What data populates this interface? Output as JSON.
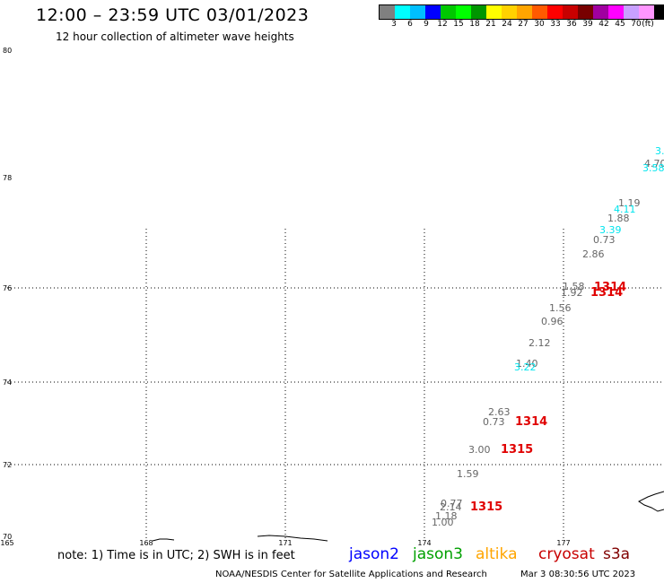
{
  "header": {
    "title": "12:00 – 23:59 UTC 03/01/2023",
    "subtitle": "12 hour collection of altimeter wave heights"
  },
  "colorbar": {
    "swatches": [
      "#808080",
      "#00ffff",
      "#00bfff",
      "#0000ff",
      "#00c800",
      "#00ff00",
      "#009600",
      "#ffff00",
      "#ffd200",
      "#ffa500",
      "#ff5a00",
      "#ff0000",
      "#c80000",
      "#780000",
      "#a000a0",
      "#ff00ff",
      "#c8a0ff",
      "#ff96ff",
      "#000000"
    ],
    "labels": [
      "3",
      "6",
      "9",
      "12",
      "15",
      "18",
      "21",
      "24",
      "27",
      "30",
      "33",
      "36",
      "39",
      "42",
      "45",
      "70",
      "(ft)"
    ]
  },
  "map": {
    "lat_labels": [
      "80",
      "78",
      "76",
      "74",
      "72",
      "70"
    ],
    "lon_labels": [
      "165",
      "168",
      "171",
      "174",
      "177"
    ],
    "observations": [
      {
        "v": "3.",
        "c": "#00e5ee"
      },
      {
        "v": "4.70",
        "c": "#666666"
      },
      {
        "v": "3.58",
        "c": "#00e5ee"
      },
      {
        "v": "1.19",
        "c": "#666666"
      },
      {
        "v": "4.11",
        "c": "#00e5ee"
      },
      {
        "v": "1.88",
        "c": "#666666"
      },
      {
        "v": "3.39",
        "c": "#00e5ee"
      },
      {
        "v": "0.73",
        "c": "#666666"
      },
      {
        "v": "2.86",
        "c": "#666666"
      },
      {
        "v": "1.58",
        "c": "#666666"
      },
      {
        "v": "1.92",
        "c": "#666666"
      },
      {
        "v": "1.56",
        "c": "#666666"
      },
      {
        "v": "0.96",
        "c": "#666666"
      },
      {
        "v": "2.12",
        "c": "#666666"
      },
      {
        "v": "1.40",
        "c": "#666666"
      },
      {
        "v": "3.22",
        "c": "#00e5ee"
      },
      {
        "v": "2.63",
        "c": "#666666"
      },
      {
        "v": "0.73",
        "c": "#666666"
      },
      {
        "v": "3.00",
        "c": "#666666"
      },
      {
        "v": "1.59",
        "c": "#666666"
      },
      {
        "v": "0.77",
        "c": "#666666"
      },
      {
        "v": "2.14",
        "c": "#666666"
      },
      {
        "v": "1.18",
        "c": "#666666"
      },
      {
        "v": "1.00",
        "c": "#666666"
      }
    ],
    "passes": [
      "1314",
      "1314",
      "1314",
      "1315",
      "1315"
    ]
  },
  "footer": {
    "note": "note: 1) Time is in UTC; 2) SWH is in feet",
    "satellites": [
      {
        "name": "jason2",
        "color": "#0000ff"
      },
      {
        "name": "jason3",
        "color": "#00a000"
      },
      {
        "name": "altika",
        "color": "#ffa500"
      },
      {
        "name": "cryosat",
        "color": "#c80000"
      },
      {
        "name": "s3a",
        "color": "#800000"
      }
    ],
    "credit": "NOAA/NESDIS Center for Satellite Applications and Research",
    "generated": "Mar  3 08:30:56 UTC 2023"
  }
}
